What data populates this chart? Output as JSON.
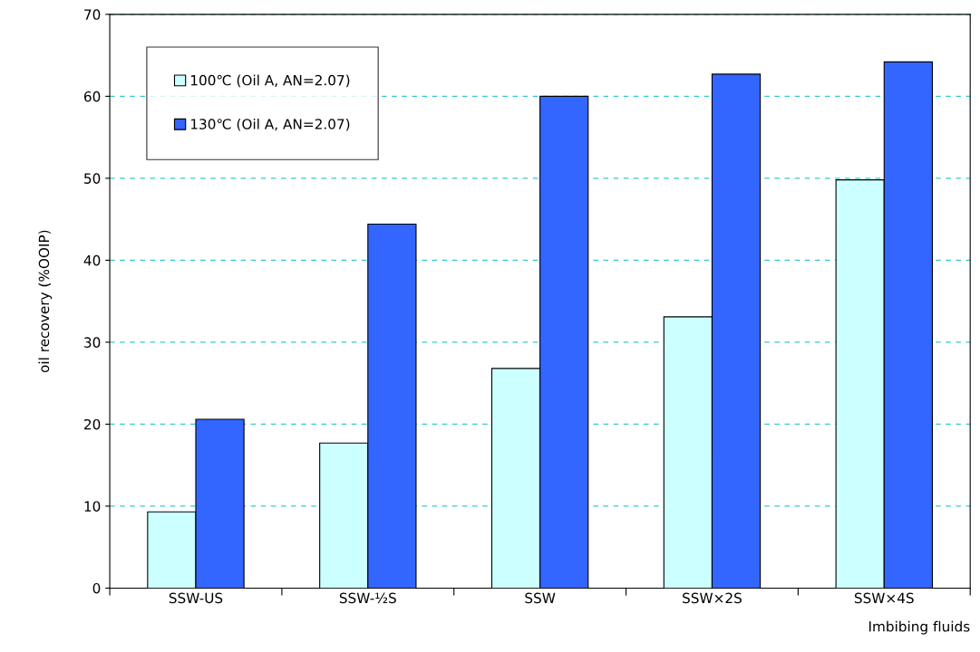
{
  "chart_data": {
    "type": "bar",
    "xlabel": "Imbibing fluids",
    "ylabel": "oil recovery (%OOIP)",
    "categories": [
      "SSW-US",
      "SSW-½S",
      "SSW",
      "SSW×2S",
      "SSW×4S"
    ],
    "series": [
      {
        "name": "100℃ (Oil A, AN=2.07)",
        "color": "#ccffff",
        "values": [
          9.3,
          17.7,
          26.8,
          33.1,
          49.8
        ]
      },
      {
        "name": "130℃ (Oil A, AN=2.07)",
        "color": "#3366ff",
        "values": [
          20.6,
          44.4,
          60.0,
          62.7,
          64.2
        ]
      }
    ],
    "ylim": [
      0,
      70
    ],
    "yticks": [
      0,
      10,
      20,
      30,
      40,
      50,
      60,
      70
    ],
    "grid": "y",
    "legend": "top left"
  }
}
